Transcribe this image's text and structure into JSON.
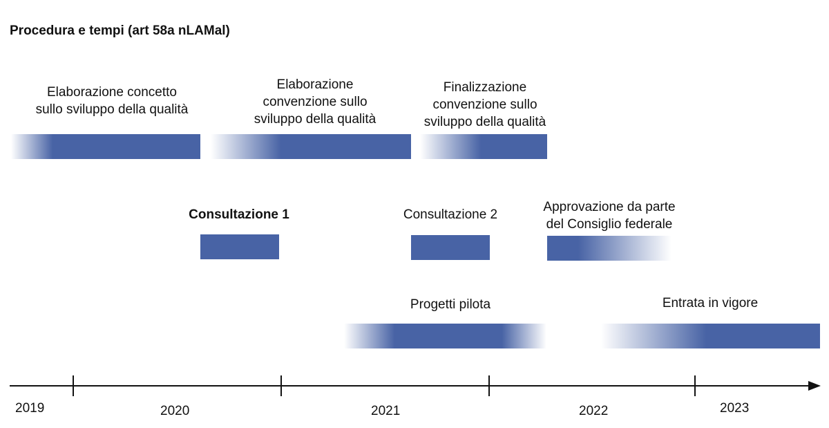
{
  "title": "Procedura e tempi (art 58a nLAMal)",
  "phases": {
    "elaborazione_concetto": "Elaborazione concetto\nsullo sviluppo della qualità",
    "elaborazione_convenzione": "Elaborazione\nconvenzione sullo\nsviluppo della qualità",
    "finalizzazione_convenzione": "Finalizzazione\nconvenzione sullo\nsviluppo della qualità",
    "consultazione_1": "Consultazione 1",
    "consultazione_2": "Consultazione 2",
    "approvazione": "Approvazione da parte\ndel Consiglio federale",
    "progetti_pilota": "Progetti pilota",
    "entrata_in_vigore": "Entrata in vigore"
  },
  "timeline": {
    "years": [
      "2019",
      "2020",
      "2021",
      "2022",
      "2023"
    ]
  },
  "colors": {
    "bar": "#4863a5",
    "axis": "#111111"
  }
}
